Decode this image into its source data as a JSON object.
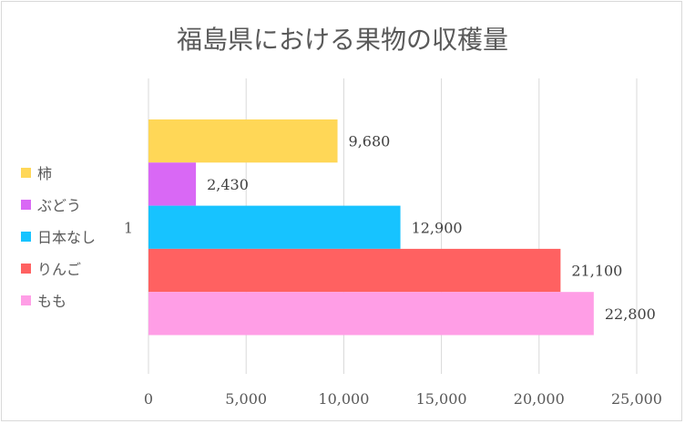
{
  "chart_data": {
    "type": "bar",
    "orientation": "horizontal",
    "title": "福島県における果物の収穫量",
    "categories": [
      "1"
    ],
    "series": [
      {
        "name": "柿",
        "values": [
          9680
        ],
        "color": "#FFD757",
        "label": "9,680"
      },
      {
        "name": "ぶどう",
        "values": [
          2430
        ],
        "color": "#D968F5",
        "label": "2,430"
      },
      {
        "name": "日本なし",
        "values": [
          12900
        ],
        "color": "#17C3FF",
        "label": "12,900"
      },
      {
        "name": "りんご",
        "values": [
          21100
        ],
        "color": "#FF6161",
        "label": "21,100"
      },
      {
        "name": "もも",
        "values": [
          22800
        ],
        "color": "#FF9EE6",
        "label": "22,800"
      }
    ],
    "xlim": [
      0,
      25000
    ],
    "xticks": [
      0,
      5000,
      10000,
      15000,
      20000,
      25000
    ],
    "xtick_labels": [
      "0",
      "5,000",
      "10,000",
      "15,000",
      "20,000",
      "25,000"
    ],
    "grid": true,
    "legend": "left",
    "xlabel": "",
    "ylabel": ""
  }
}
